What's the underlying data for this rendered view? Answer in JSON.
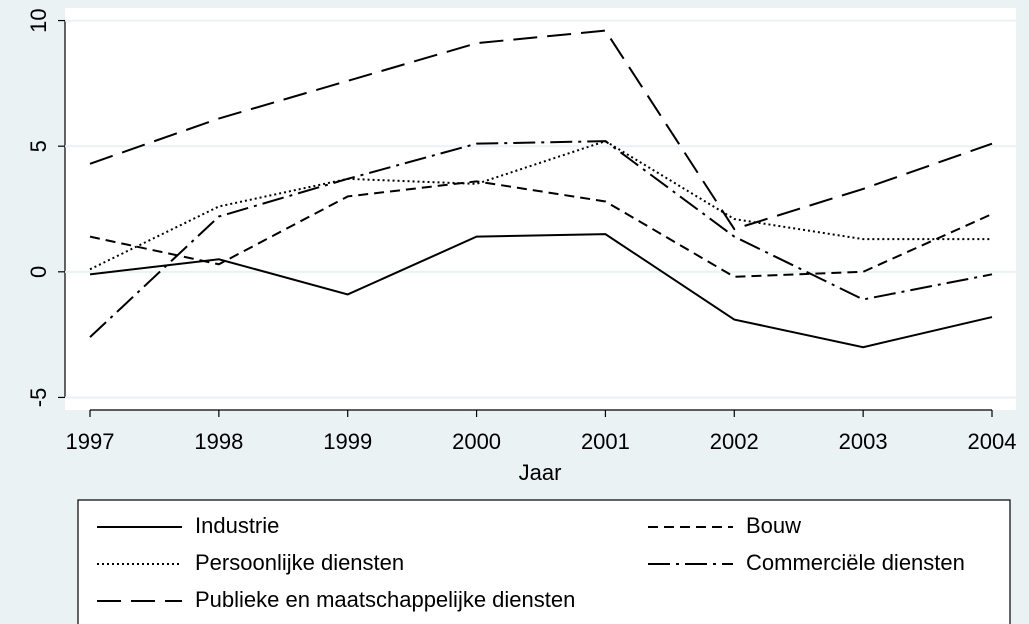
{
  "chart_data": {
    "type": "line",
    "x": [
      1997,
      1998,
      1999,
      2000,
      2001,
      2002,
      2003,
      2004
    ],
    "xlim": [
      1997,
      2004
    ],
    "xticks": [
      1997,
      1998,
      1999,
      2000,
      2001,
      2002,
      2003,
      2004
    ],
    "ylim": [
      -5.5,
      10.5
    ],
    "yticks": [
      -5,
      0,
      5,
      10
    ],
    "x_label": "Jaar",
    "grid": true,
    "legend": "bottom",
    "series": [
      {
        "name": "Industrie",
        "color": "#000000",
        "dash": "none",
        "values": [
          -0.1,
          0.5,
          -0.9,
          1.4,
          1.5,
          -1.9,
          -3.0,
          -1.8
        ]
      },
      {
        "name": "Bouw",
        "color": "#000000",
        "dash": "10 6",
        "values": [
          1.4,
          0.3,
          3.0,
          3.6,
          2.8,
          -0.2,
          0.0,
          2.3
        ]
      },
      {
        "name": "Persoonlijke diensten",
        "color": "#000000",
        "dash": "2 3",
        "values": [
          0.1,
          2.6,
          3.7,
          3.5,
          5.2,
          2.1,
          1.3,
          1.3
        ]
      },
      {
        "name": "Commerciële diensten",
        "color": "#000000",
        "dash": "22 6 3 6",
        "values": [
          -2.6,
          2.2,
          3.7,
          5.1,
          5.2,
          1.4,
          -1.1,
          -0.1
        ]
      },
      {
        "name": "Publieke en maatschappelijke diensten",
        "color": "#000000",
        "dash": "24 10",
        "values": [
          4.3,
          6.1,
          7.6,
          9.1,
          9.6,
          1.7,
          3.3,
          5.1
        ]
      }
    ]
  }
}
